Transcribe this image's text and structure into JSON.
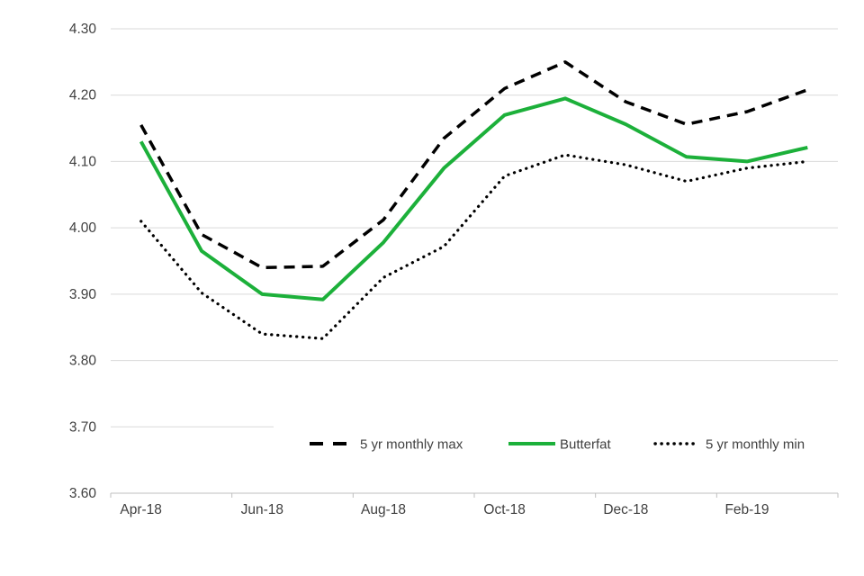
{
  "chart_data": {
    "type": "line",
    "title": "",
    "xlabel": "",
    "ylabel": "",
    "x": [
      "Apr-18",
      "May-18",
      "Jun-18",
      "Jul-18",
      "Aug-18",
      "Sep-18",
      "Oct-18",
      "Nov-18",
      "Dec-18",
      "Jan-19",
      "Feb-19",
      "Mar-19"
    ],
    "x_tick_labels": [
      "Apr-18",
      "Jun-18",
      "Aug-18",
      "Oct-18",
      "Dec-18",
      "Feb-19"
    ],
    "y_tick_labels": [
      "4.30",
      "4.20",
      "4.10",
      "4.00",
      "3.90",
      "3.80",
      "3.70",
      "3.60"
    ],
    "ylim": [
      3.6,
      4.3
    ],
    "y_step": 0.1,
    "grid": true,
    "legend_position": "bottom-inside",
    "series": [
      {
        "name": "5 yr monthly max",
        "style": "dashed",
        "color": "#000000",
        "values": [
          4.155,
          3.99,
          3.94,
          3.942,
          4.012,
          4.135,
          4.21,
          4.25,
          4.19,
          4.156,
          4.175,
          4.208
        ]
      },
      {
        "name": "Butterfat",
        "style": "solid",
        "color": "#1CB03A",
        "values": [
          4.13,
          3.965,
          3.9,
          3.892,
          3.978,
          4.09,
          4.17,
          4.195,
          4.156,
          4.107,
          4.1,
          4.121
        ]
      },
      {
        "name": "5 yr monthly min",
        "style": "dotted",
        "color": "#000000",
        "values": [
          4.01,
          3.902,
          3.84,
          3.833,
          3.925,
          3.972,
          4.078,
          4.11,
          4.095,
          4.07,
          4.09,
          4.1
        ]
      }
    ]
  },
  "colors": {
    "background": "#FFFFFF",
    "gridline": "#D9D9D9",
    "axis_line": "#BFBFBF",
    "tick_label_text": "#404040",
    "legend_text": "#404040",
    "series_green": "#1CB03A",
    "series_black": "#000000"
  }
}
